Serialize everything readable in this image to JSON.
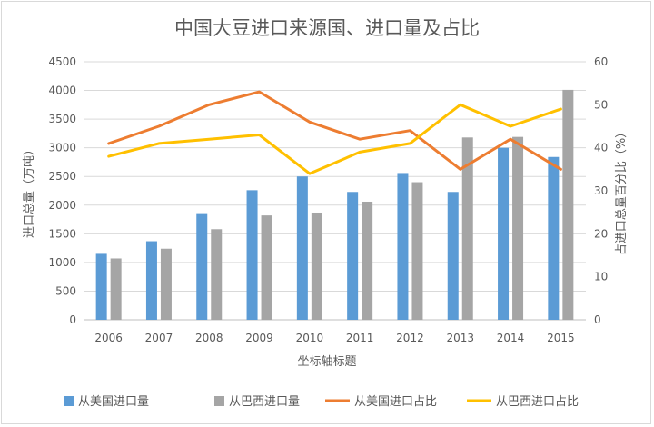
{
  "chart_data": {
    "type": "bar+line",
    "title": "中国大豆进口来源国、进口量及占比",
    "categories": [
      "2006",
      "2007",
      "2008",
      "2009",
      "2010",
      "2011",
      "2012",
      "2013",
      "2014",
      "2015"
    ],
    "xlabel": "坐标轴标题",
    "ylabel_left": "进口总量（万吨）",
    "ylabel_right": "占进口总量百分比（%）",
    "ylim_left": [
      0,
      4500
    ],
    "yticks_left": [
      0,
      500,
      1000,
      1500,
      2000,
      2500,
      3000,
      3500,
      4000,
      4500
    ],
    "ylim_right": [
      0,
      60
    ],
    "yticks_right": [
      0,
      10,
      20,
      30,
      40,
      50,
      60
    ],
    "grid": true,
    "legend_position": "bottom",
    "series": [
      {
        "name": "从美国进口量",
        "kind": "bar",
        "axis": "left",
        "color": "#5b9bd5",
        "values": [
          1150,
          1370,
          1860,
          2260,
          2500,
          2230,
          2560,
          2230,
          3000,
          2840
        ]
      },
      {
        "name": "从巴西进口量",
        "kind": "bar",
        "axis": "left",
        "color": "#a5a5a5",
        "values": [
          1070,
          1240,
          1580,
          1820,
          1870,
          2060,
          2400,
          3180,
          3190,
          4010
        ]
      },
      {
        "name": "从美国进口占比",
        "kind": "line",
        "axis": "right",
        "color": "#ed7d31",
        "values": [
          41,
          45,
          50,
          53,
          46,
          42,
          44,
          35,
          42,
          35
        ]
      },
      {
        "name": "从巴西进口占比",
        "kind": "line",
        "axis": "right",
        "color": "#ffc000",
        "values": [
          38,
          41,
          42,
          43,
          34,
          39,
          41,
          50,
          45,
          49
        ]
      }
    ]
  }
}
